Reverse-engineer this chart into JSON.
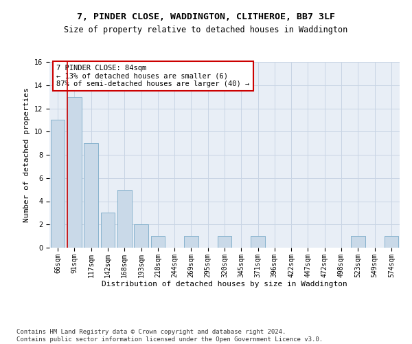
{
  "title": "7, PINDER CLOSE, WADDINGTON, CLITHEROE, BB7 3LF",
  "subtitle": "Size of property relative to detached houses in Waddington",
  "xlabel": "Distribution of detached houses by size in Waddington",
  "ylabel": "Number of detached properties",
  "categories": [
    "66sqm",
    "91sqm",
    "117sqm",
    "142sqm",
    "168sqm",
    "193sqm",
    "218sqm",
    "244sqm",
    "269sqm",
    "295sqm",
    "320sqm",
    "345sqm",
    "371sqm",
    "396sqm",
    "422sqm",
    "447sqm",
    "472sqm",
    "498sqm",
    "523sqm",
    "549sqm",
    "574sqm"
  ],
  "values": [
    11,
    13,
    9,
    3,
    5,
    2,
    1,
    0,
    1,
    0,
    1,
    0,
    1,
    0,
    0,
    0,
    0,
    0,
    1,
    0,
    1
  ],
  "bar_color": "#c9d9e8",
  "bar_edge_color": "#7aaac8",
  "highlight_color": "#cc0000",
  "highlight_bar_index": 1,
  "annotation_text": "7 PINDER CLOSE: 84sqm\n← 13% of detached houses are smaller (6)\n87% of semi-detached houses are larger (40) →",
  "annotation_box_color": "#ffffff",
  "annotation_box_edge_color": "#cc0000",
  "ylim": [
    0,
    16
  ],
  "yticks": [
    0,
    2,
    4,
    6,
    8,
    10,
    12,
    14,
    16
  ],
  "grid_color": "#c8d4e4",
  "background_color": "#e8eef6",
  "footer_text": "Contains HM Land Registry data © Crown copyright and database right 2024.\nContains public sector information licensed under the Open Government Licence v3.0.",
  "title_fontsize": 9.5,
  "subtitle_fontsize": 8.5,
  "xlabel_fontsize": 8,
  "ylabel_fontsize": 8,
  "tick_fontsize": 7,
  "annotation_fontsize": 7.5,
  "footer_fontsize": 6.5
}
